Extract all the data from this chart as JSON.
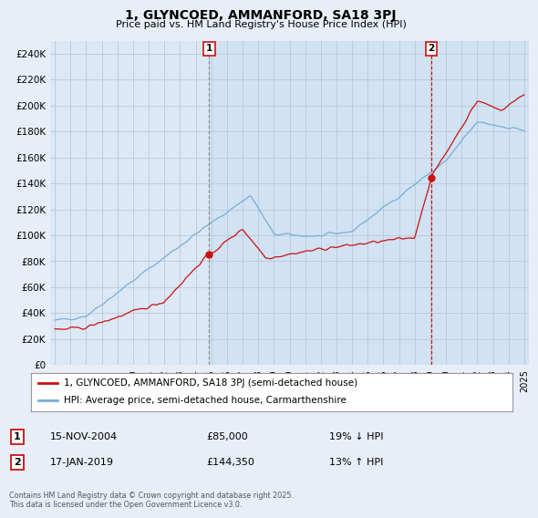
{
  "title": "1, GLYNCOED, AMMANFORD, SA18 3PJ",
  "subtitle": "Price paid vs. HM Land Registry's House Price Index (HPI)",
  "ylim": [
    0,
    250000
  ],
  "yticks": [
    0,
    20000,
    40000,
    60000,
    80000,
    100000,
    120000,
    140000,
    160000,
    180000,
    200000,
    220000,
    240000
  ],
  "ytick_labels": [
    "£0",
    "£20K",
    "£40K",
    "£60K",
    "£80K",
    "£100K",
    "£120K",
    "£140K",
    "£160K",
    "£180K",
    "£200K",
    "£220K",
    "£240K"
  ],
  "hpi_color": "#7aadd4",
  "price_color": "#cc1111",
  "sale1_date": "15-NOV-2004",
  "sale1_price": 85000,
  "sale1_price_str": "£85,000",
  "sale1_pct": "19% ↓ HPI",
  "sale2_date": "17-JAN-2019",
  "sale2_price": 144350,
  "sale2_price_str": "£144,350",
  "sale2_pct": "13% ↑ HPI",
  "legend1": "1, GLYNCOED, AMMANFORD, SA18 3PJ (semi-detached house)",
  "legend2": "HPI: Average price, semi-detached house, Carmarthenshire",
  "footer": "Contains HM Land Registry data © Crown copyright and database right 2025.\nThis data is licensed under the Open Government Licence v3.0.",
  "background_color": "#e8eef8",
  "plot_bg_color": "#dce8f5",
  "start_year": 1995,
  "end_year": 2025,
  "sale1_year": 2004.875,
  "sale2_year": 2019.042
}
